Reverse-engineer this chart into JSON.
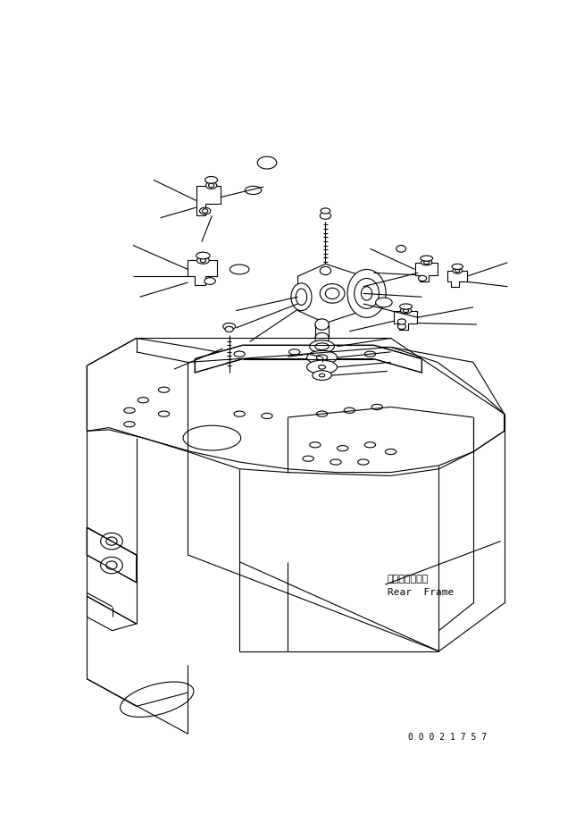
{
  "bg_color": "#ffffff",
  "line_color": "#000000",
  "lw": 0.8,
  "fig_width": 6.54,
  "fig_height": 9.4,
  "dpi": 100,
  "part_number": "0 0 0 2 1 7 5 7",
  "label_jp": "リヤーフレーム",
  "label_en": "Rear  Frame"
}
